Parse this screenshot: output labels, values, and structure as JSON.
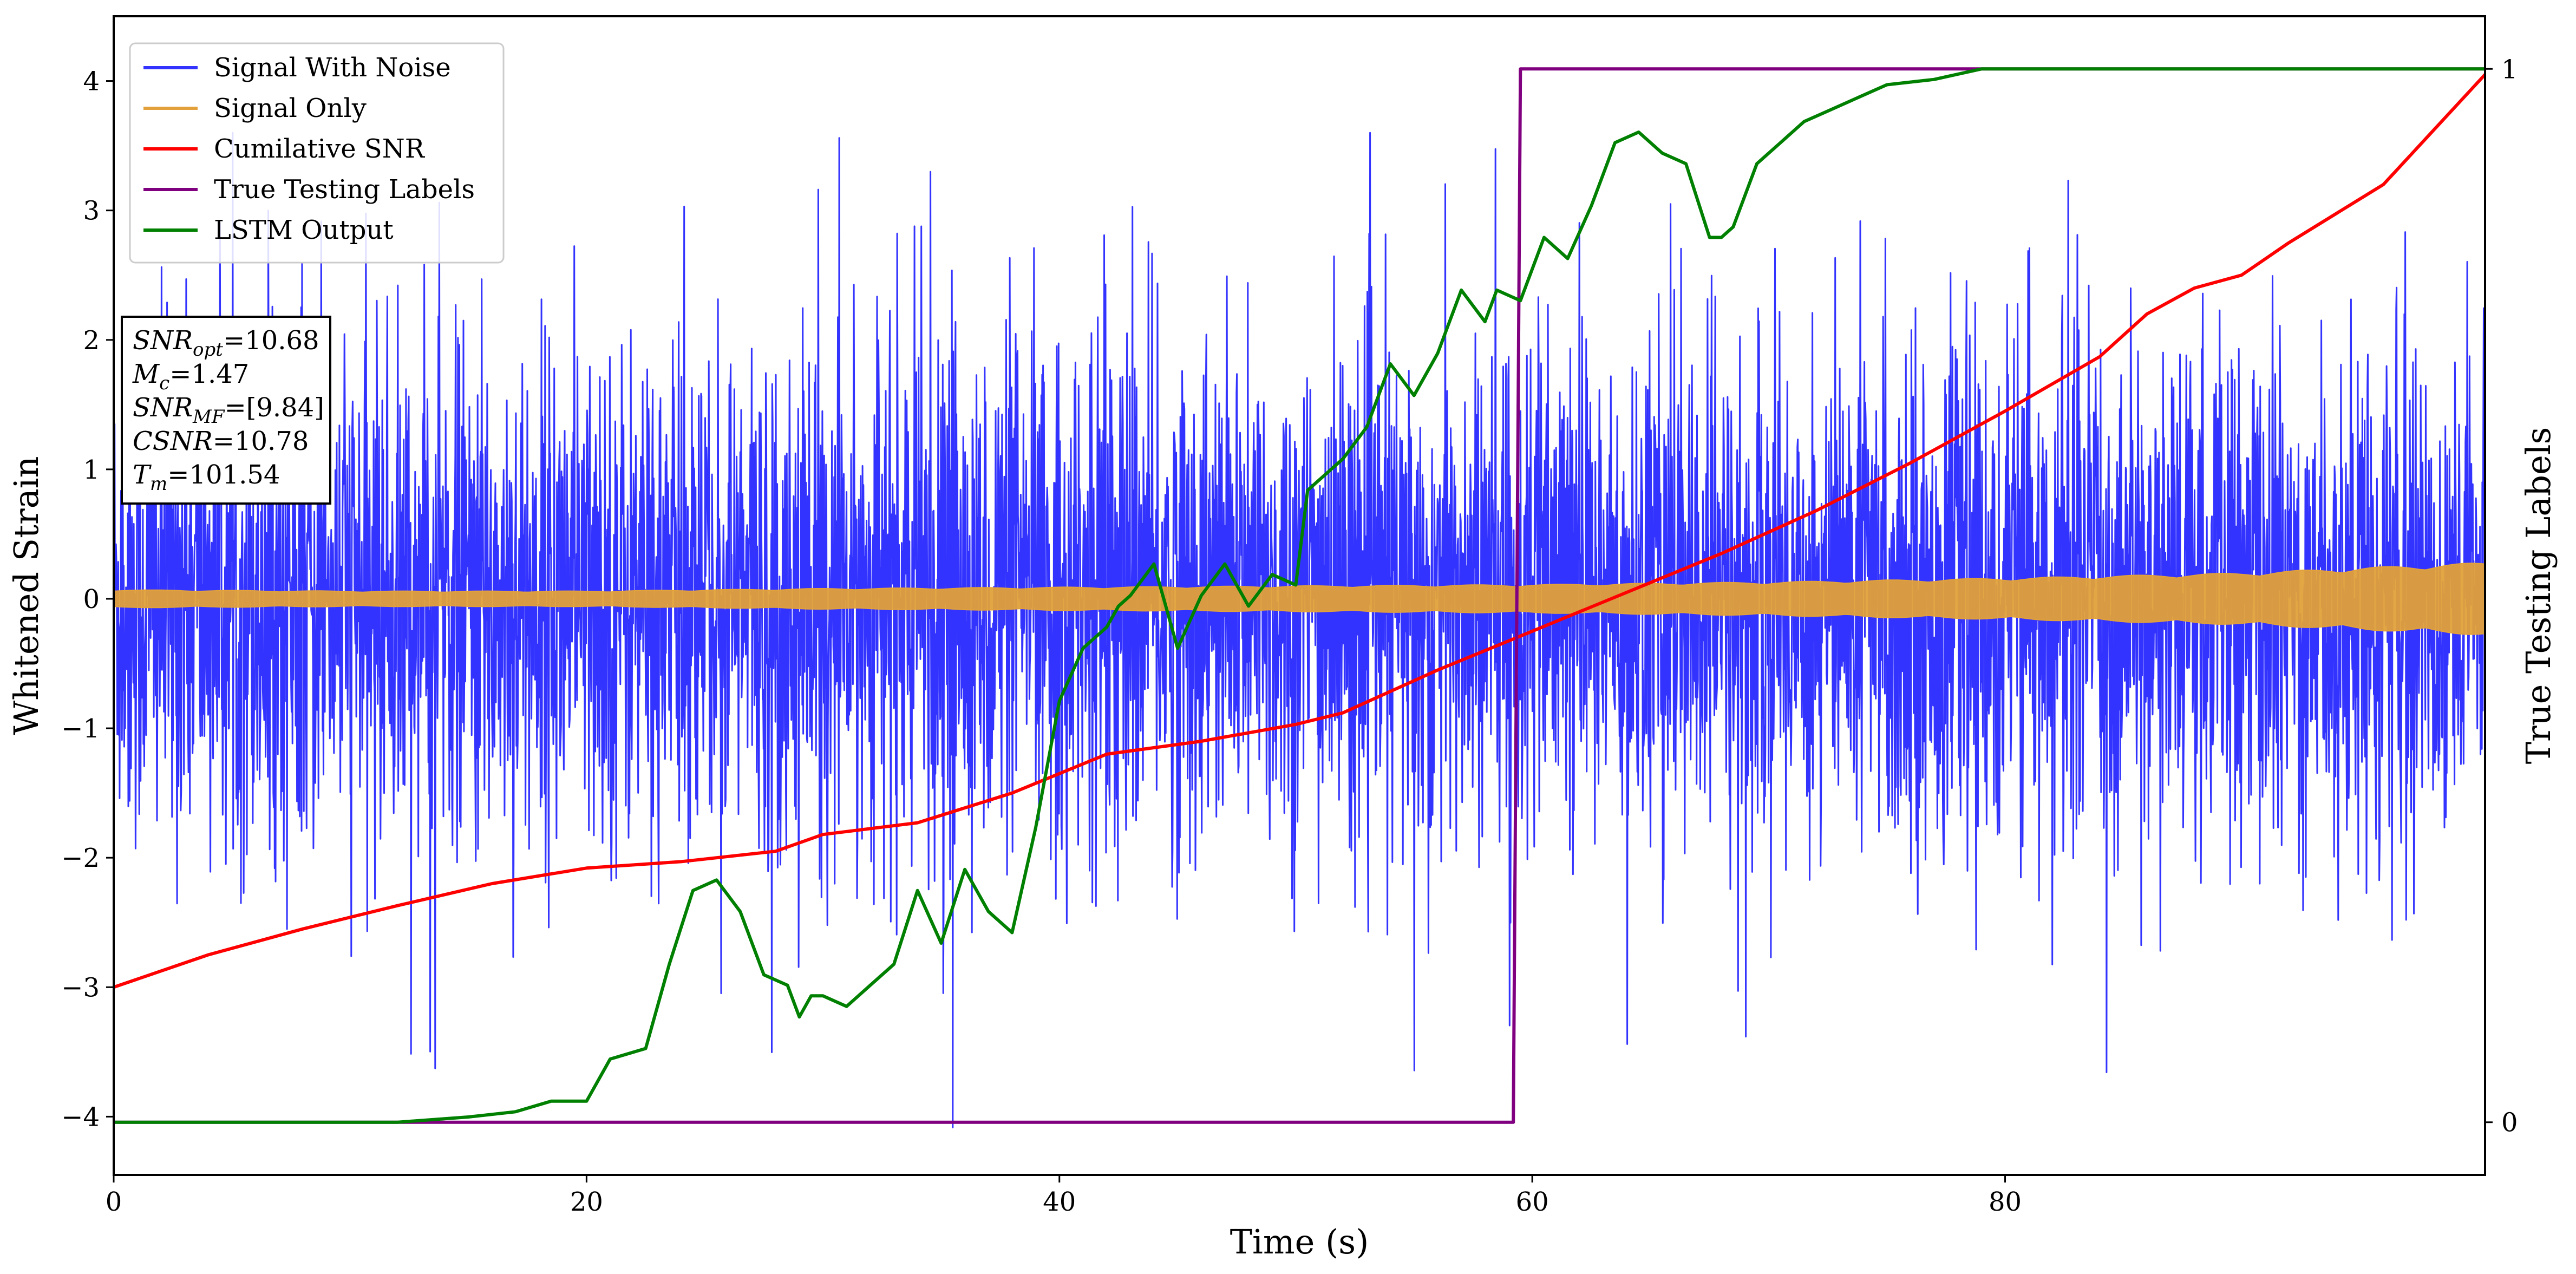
{
  "chart_data": {
    "type": "line",
    "xlabel": "Time (s)",
    "ylabel": "Whitened Strain",
    "y2label": "True Testing Labels",
    "xlim": [
      0,
      100.3
    ],
    "ylim": [
      -4.45,
      4.5
    ],
    "y2lim": [
      -0.05,
      1.05
    ],
    "xticks": [
      0,
      20,
      40,
      60,
      80
    ],
    "yticks": [
      -4,
      -3,
      -2,
      -1,
      0,
      1,
      2,
      3,
      4
    ],
    "y2ticks": [
      0,
      1
    ],
    "grid": false,
    "legend_position": "top-left",
    "series": [
      {
        "name": "Signal With Noise",
        "axis": "left",
        "color": "#3333ff",
        "kind": "noise",
        "center": 0.0,
        "typical_band": [
          -1.6,
          1.6
        ],
        "extremes": [
          -4.1,
          3.6
        ]
      },
      {
        "name": "Signal Only",
        "axis": "left",
        "color": "#e2a13a",
        "kind": "band",
        "x": [
          0,
          10,
          20,
          30,
          40,
          50,
          60,
          70,
          80,
          90,
          95,
          100.3
        ],
        "amplitude": [
          0.07,
          0.06,
          0.06,
          0.08,
          0.09,
          0.1,
          0.11,
          0.13,
          0.16,
          0.2,
          0.24,
          0.28
        ]
      },
      {
        "name": "Cumilative SNR",
        "axis": "left",
        "color": "#ff0000",
        "x": [
          0,
          4,
          8,
          12,
          16,
          20,
          24,
          28,
          30,
          34,
          38,
          42,
          46,
          50,
          52,
          56,
          60,
          64,
          68,
          72,
          76,
          80,
          84,
          86,
          88,
          90,
          92,
          96,
          100.3
        ],
        "y": [
          -3.0,
          -2.75,
          -2.55,
          -2.37,
          -2.2,
          -2.08,
          -2.03,
          -1.95,
          -1.82,
          -1.73,
          -1.5,
          -1.2,
          -1.1,
          -0.97,
          -0.88,
          -0.55,
          -0.25,
          0.05,
          0.35,
          0.68,
          1.05,
          1.45,
          1.87,
          2.2,
          2.4,
          2.5,
          2.75,
          3.2,
          4.05
        ]
      },
      {
        "name": "True Testing Labels",
        "axis": "right",
        "color": "#800080",
        "x": [
          0,
          59.2,
          59.5,
          100.3
        ],
        "y": [
          0,
          0,
          1,
          1
        ]
      },
      {
        "name": "LSTM Output",
        "axis": "right",
        "color": "#008000",
        "x": [
          0,
          12,
          15,
          17,
          18.5,
          20,
          21,
          22.5,
          23.5,
          24.5,
          25.5,
          26.5,
          27.5,
          28.5,
          29,
          29.5,
          30,
          31,
          32,
          33,
          34,
          35,
          36,
          37,
          38,
          39,
          40,
          41,
          42,
          42.5,
          43,
          44,
          45,
          46,
          47,
          48,
          49,
          50,
          50.5,
          51,
          52,
          53,
          54,
          55,
          56,
          57,
          58,
          58.5,
          59.5,
          60.5,
          61.5,
          62.5,
          63.5,
          64.5,
          65.5,
          66.5,
          67.5,
          68,
          68.5,
          69.5,
          70.5,
          71.5,
          72.5,
          73.5,
          75,
          77,
          79,
          80,
          85,
          100.3
        ],
        "y": [
          0,
          0,
          0.005,
          0.01,
          0.02,
          0.02,
          0.06,
          0.07,
          0.15,
          0.22,
          0.23,
          0.2,
          0.14,
          0.13,
          0.1,
          0.12,
          0.12,
          0.11,
          0.13,
          0.15,
          0.22,
          0.17,
          0.24,
          0.2,
          0.18,
          0.28,
          0.4,
          0.45,
          0.47,
          0.49,
          0.5,
          0.53,
          0.45,
          0.5,
          0.53,
          0.49,
          0.52,
          0.51,
          0.6,
          0.61,
          0.63,
          0.66,
          0.72,
          0.69,
          0.73,
          0.79,
          0.76,
          0.79,
          0.78,
          0.84,
          0.82,
          0.87,
          0.93,
          0.94,
          0.92,
          0.91,
          0.84,
          0.84,
          0.85,
          0.91,
          0.93,
          0.95,
          0.96,
          0.97,
          0.985,
          0.99,
          1.0,
          1.0,
          1.0,
          1.0
        ]
      }
    ],
    "info_box": [
      {
        "sym": "SNR",
        "sub": "opt",
        "value": "=10.68"
      },
      {
        "sym": "M",
        "sub": "c",
        "value": "=1.47"
      },
      {
        "sym": "SNR",
        "sub": "MF",
        "value": "=[9.84]"
      },
      {
        "sym": "CSNR",
        "sub": "",
        "value": "=10.78"
      },
      {
        "sym": "T",
        "sub": "m",
        "value": "=101.54"
      }
    ]
  }
}
